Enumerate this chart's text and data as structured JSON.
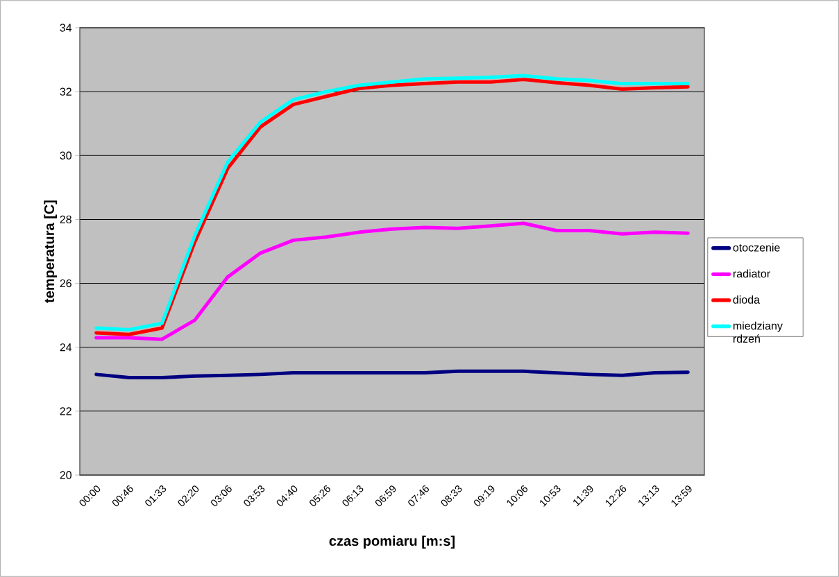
{
  "chart_data": {
    "type": "line",
    "xlabel": "czas pomiaru [m:s]",
    "ylabel": "temperatura [C]",
    "categories": [
      "00:00",
      "00:46",
      "01:33",
      "02:20",
      "03:06",
      "03:53",
      "04:40",
      "05:26",
      "06:13",
      "06:59",
      "07:46",
      "08:33",
      "09:19",
      "10:06",
      "10:53",
      "11:39",
      "12:26",
      "13:13",
      "13:59"
    ],
    "series": [
      {
        "name": "otoczenie",
        "color": "#000080",
        "values": [
          23.15,
          23.05,
          23.05,
          23.1,
          23.12,
          23.15,
          23.2,
          23.2,
          23.2,
          23.2,
          23.2,
          23.25,
          23.25,
          23.25,
          23.2,
          23.15,
          23.12,
          23.2,
          23.22
        ]
      },
      {
        "name": "radiator",
        "color": "#ff00ff",
        "values": [
          24.3,
          24.3,
          24.25,
          24.85,
          26.2,
          26.95,
          27.35,
          27.45,
          27.6,
          27.7,
          27.75,
          27.72,
          27.8,
          27.88,
          27.65,
          27.65,
          27.55,
          27.6,
          27.57
        ]
      },
      {
        "name": "dioda",
        "color": "#ff0000",
        "values": [
          24.45,
          24.4,
          24.6,
          27.3,
          29.6,
          30.9,
          31.6,
          31.85,
          32.1,
          32.2,
          32.25,
          32.3,
          32.3,
          32.38,
          32.28,
          32.2,
          32.08,
          32.12,
          32.15
        ]
      },
      {
        "name": "miedziany rdzeń",
        "color": "#00ffff",
        "values": [
          24.6,
          24.55,
          24.75,
          27.5,
          29.8,
          31.05,
          31.75,
          32.0,
          32.2,
          32.3,
          32.4,
          32.42,
          32.45,
          32.5,
          32.4,
          32.35,
          32.25,
          32.25,
          32.25
        ]
      }
    ],
    "ylim": [
      20,
      34
    ],
    "yticks": [
      20,
      22,
      24,
      26,
      28,
      30,
      32,
      34
    ],
    "grid": "y",
    "legend": "right"
  }
}
